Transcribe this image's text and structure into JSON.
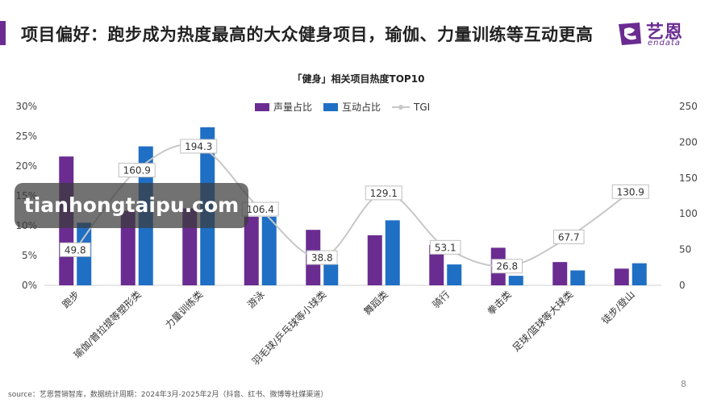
{
  "header": {
    "title": "项目偏好：跑步成为热度最高的大众健身项目，瑜伽、力量训练等互动更高",
    "logo_name": "艺恩",
    "logo_sub": "endata",
    "accent_color": "#6a2c91"
  },
  "chart_data": {
    "type": "bar",
    "title": "「健身」相关项目热度TOP10",
    "categories": [
      "跑步",
      "瑜伽/普拉提等塑形类",
      "力量训练类",
      "游泳",
      "羽毛球/乒乓球等小球类",
      "舞蹈类",
      "骑行",
      "拳击类",
      "足球/篮球等大球类",
      "徒步/登山"
    ],
    "series": [
      {
        "name": "声量占比",
        "type": "bar",
        "axis": "left",
        "color": "#6a2c91",
        "values": [
          21.6,
          12.5,
          12.9,
          11.5,
          9.3,
          8.4,
          6.8,
          6.3,
          3.9,
          2.8
        ]
      },
      {
        "name": "互动占比",
        "type": "bar",
        "axis": "left",
        "color": "#1f6fc5",
        "values": [
          10.5,
          23.3,
          26.5,
          11.5,
          3.5,
          10.9,
          3.5,
          1.6,
          2.5,
          3.7
        ]
      },
      {
        "name": "TGI",
        "type": "line",
        "axis": "right",
        "color": "#c7c7c7",
        "values": [
          49.8,
          160.9,
          194.3,
          106.4,
          38.8,
          129.1,
          53.1,
          26.8,
          67.7,
          130.9
        ]
      }
    ],
    "y_left": {
      "min": 0,
      "max": 30,
      "ticks": [
        "0%",
        "5%",
        "10%",
        "15%",
        "20%",
        "25%",
        "30%"
      ]
    },
    "y_right": {
      "min": 0,
      "max": 250,
      "ticks": [
        "0",
        "50",
        "100",
        "150",
        "200",
        "250"
      ]
    },
    "legend_position": "top-center",
    "grid": false
  },
  "watermark": "tianhongtaipu.com",
  "footer": {
    "source": "source：艺恩营销智库，数据统计周期：2024年3月-2025年2月（抖音、红书、微博等社媒渠道）",
    "page_number": "8"
  }
}
